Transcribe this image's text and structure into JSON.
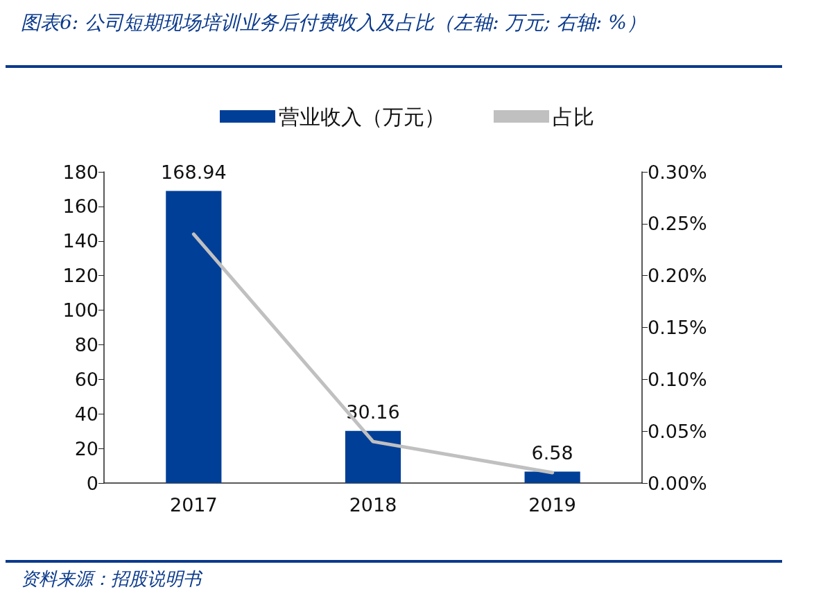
{
  "chart_data": {
    "type": "bar",
    "title": "图表6: 公司短期现场培训业务后付费收入及占比（左轴: 万元; 右轴: %）",
    "annotations": [
      "资料来源：招股说明书"
    ],
    "categories": [
      "2017",
      "2018",
      "2019"
    ],
    "series": [
      {
        "name": "营业收入（万元）",
        "type": "bar",
        "color": "#003f98",
        "values": [
          168.94,
          30.16,
          6.58
        ],
        "value_labels": [
          "168.94",
          "30.16",
          "6.58"
        ]
      },
      {
        "name": "占比",
        "type": "line",
        "axis": "y2",
        "color": "#c0c0c0",
        "values": [
          0.24,
          0.04,
          0.01
        ]
      }
    ],
    "ylim": [
      0,
      180
    ],
    "yticks": [
      0,
      20,
      40,
      60,
      80,
      100,
      120,
      140,
      160,
      180
    ],
    "y2lim": [
      0,
      0.3
    ],
    "y2ticks": [
      {
        "value": 0,
        "label": "0.00%"
      },
      {
        "value": 0.05,
        "label": "0.05%"
      },
      {
        "value": 0.1,
        "label": "0.10%"
      },
      {
        "value": 0.15,
        "label": "0.15%"
      },
      {
        "value": 0.2,
        "label": "0.20%"
      },
      {
        "value": 0.25,
        "label": "0.25%"
      },
      {
        "value": 0.3,
        "label": "0.30%"
      }
    ],
    "legend": "top",
    "marker": "none",
    "line_style": "solid"
  }
}
